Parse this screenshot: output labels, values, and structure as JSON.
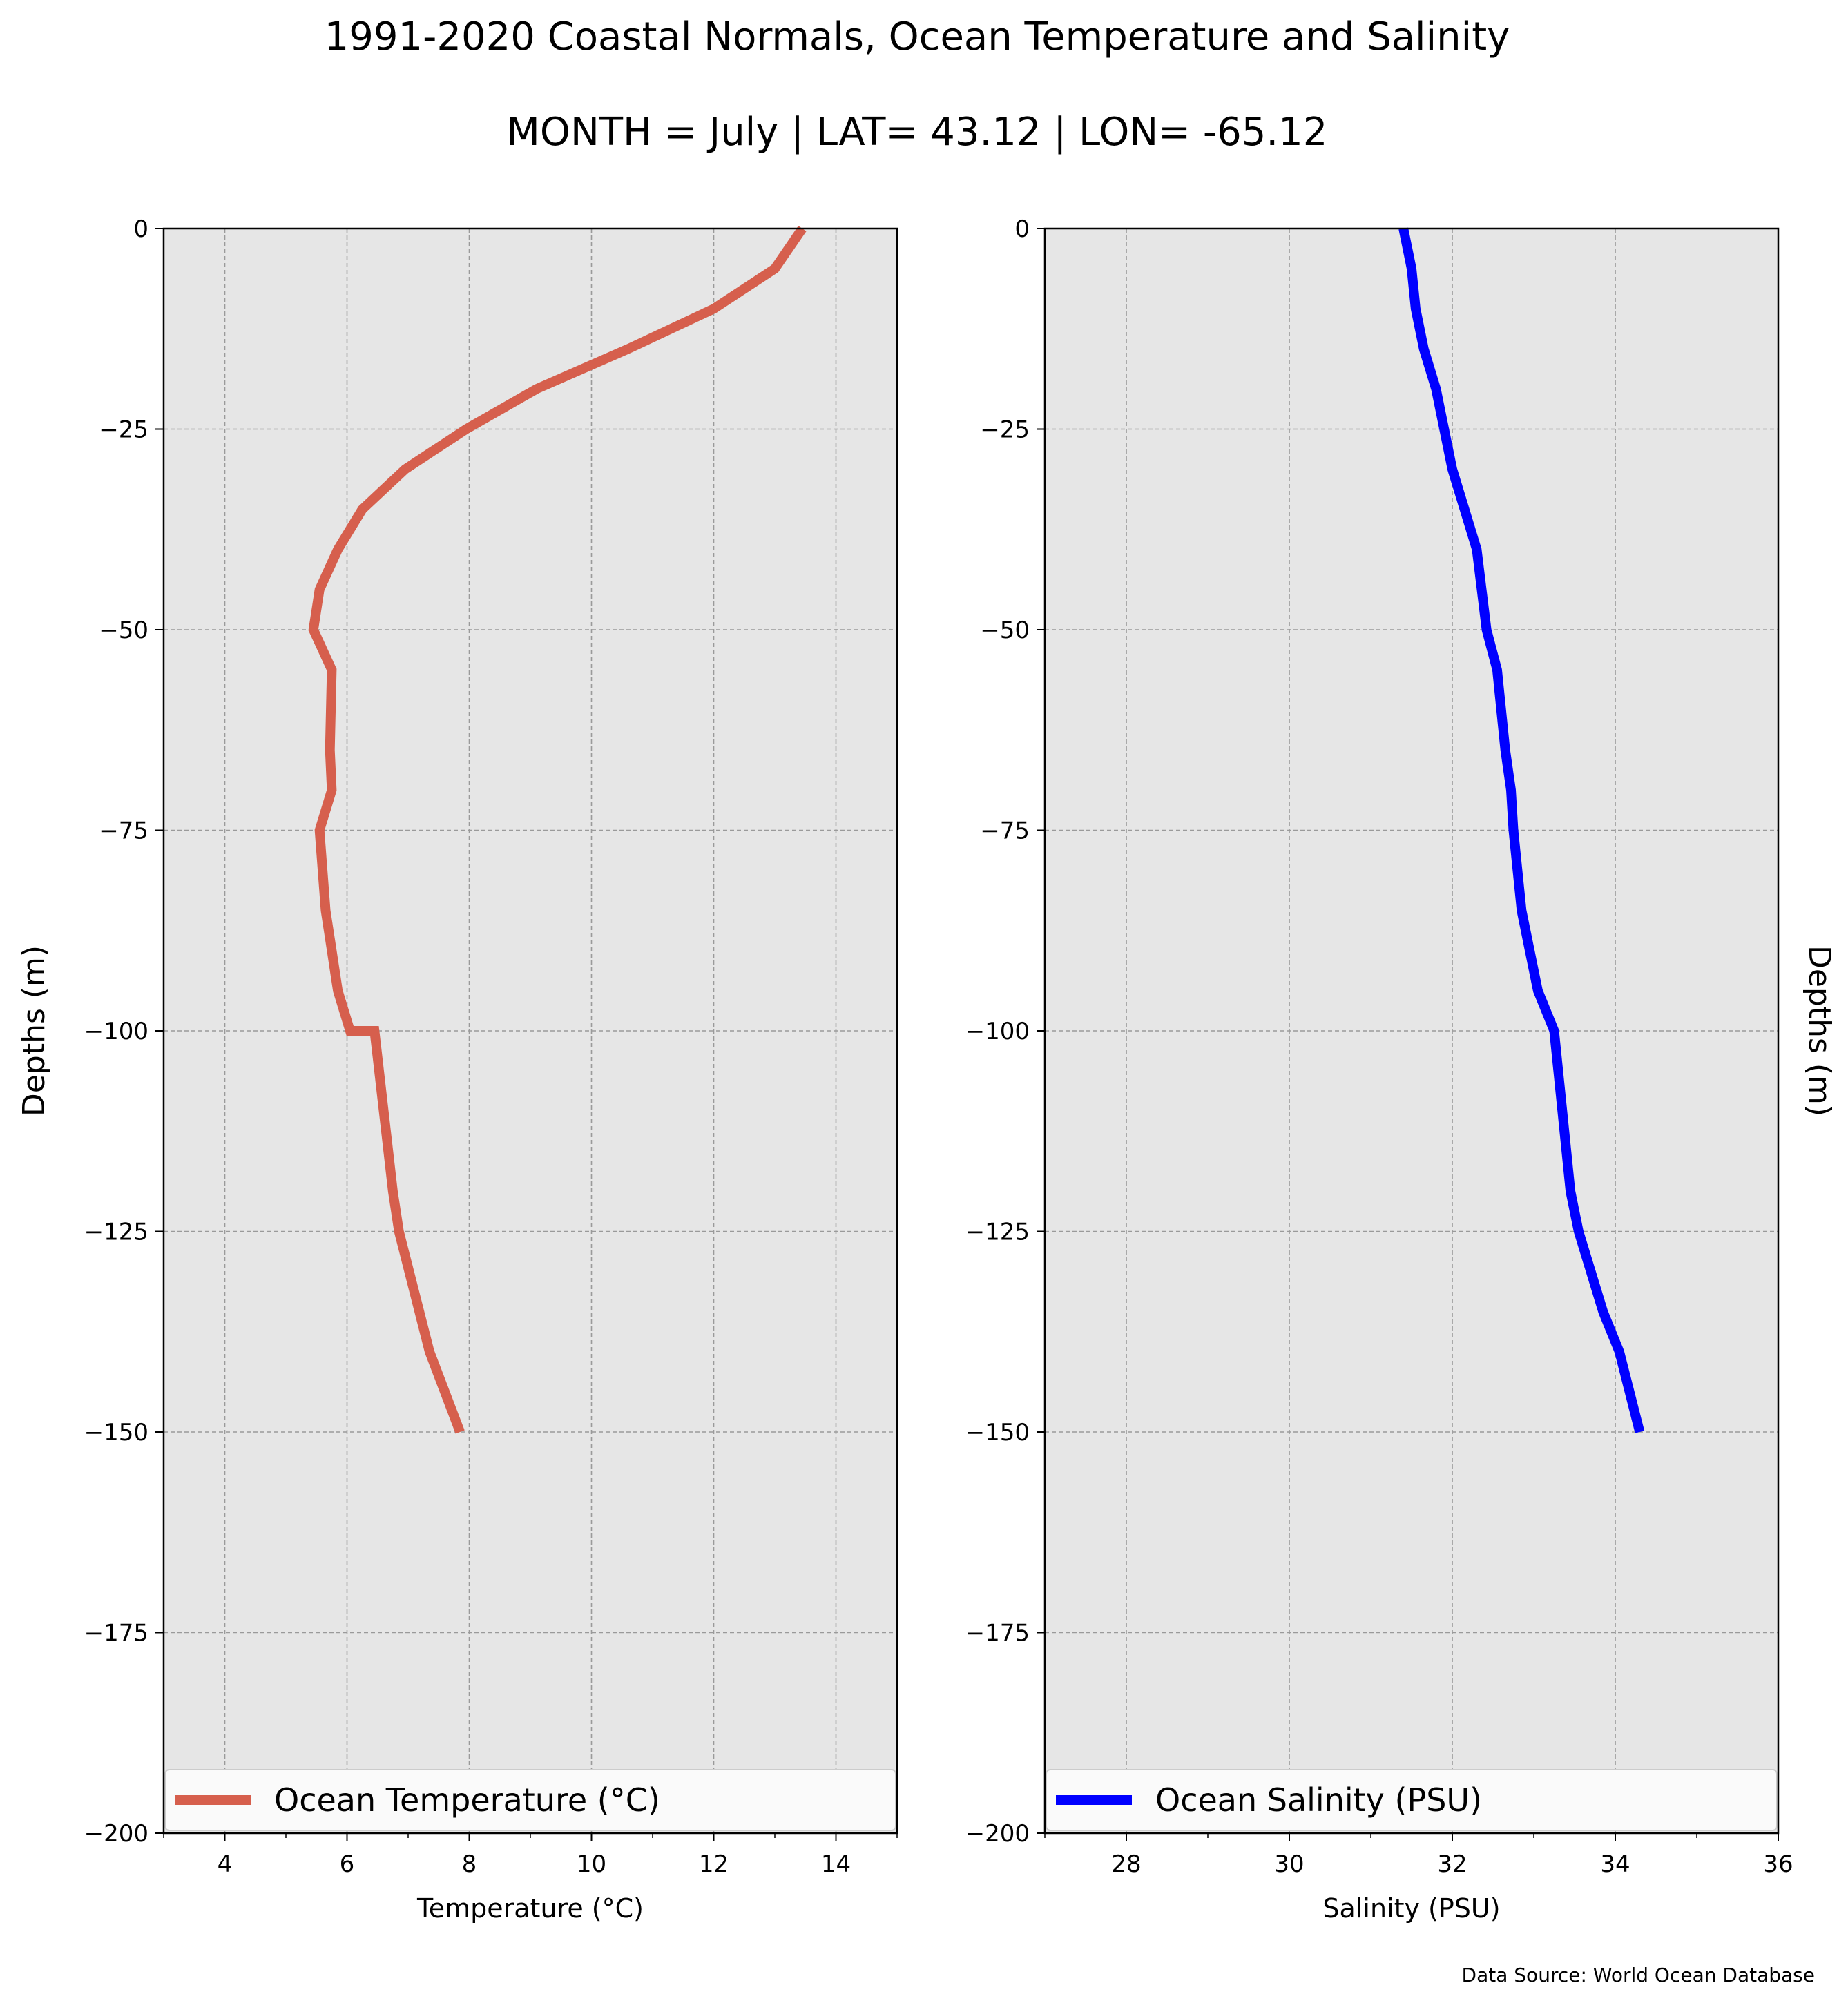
{
  "figure": {
    "title": "1991-2020 Coastal Normals, Ocean Temperature and Salinity",
    "subtitle": "MONTH = July | LAT= 43.12 | LON= -65.12",
    "footnote": "Data Source: World Ocean Database"
  },
  "chart_data": [
    {
      "type": "line",
      "title": "",
      "xlabel": "Temperature (°C)",
      "ylabel": "Depths (m)",
      "xlim": [
        3,
        15
      ],
      "ylim": [
        -200,
        0
      ],
      "xticks": [
        4,
        6,
        8,
        10,
        12,
        14
      ],
      "yticks": [
        0,
        -25,
        -50,
        -75,
        -100,
        -125,
        -150,
        -175,
        -200
      ],
      "grid": true,
      "legend_position": "bottom",
      "series": [
        {
          "name": "Ocean Temperature (°C)",
          "color": "#d65f4d",
          "x": [
            13.45,
            13.0,
            12.0,
            10.6,
            9.1,
            7.95,
            6.95,
            6.25,
            5.85,
            5.55,
            5.45,
            5.75,
            5.72,
            5.75,
            5.55,
            5.65,
            5.75,
            5.85,
            6.05,
            6.45,
            6.6,
            6.75,
            6.85,
            7.35,
            7.85
          ],
          "y": [
            0,
            -5,
            -10,
            -15,
            -20,
            -25,
            -30,
            -35,
            -40,
            -45,
            -50,
            -55,
            -65,
            -70,
            -75,
            -85,
            -90,
            -95,
            -100,
            -100,
            -110,
            -120,
            -125,
            -140,
            -150
          ]
        }
      ]
    },
    {
      "type": "line",
      "title": "",
      "xlabel": "Salinity (PSU)",
      "ylabel": "Depths (m)",
      "xlim": [
        27,
        36
      ],
      "ylim": [
        -200,
        0
      ],
      "xticks": [
        28,
        30,
        32,
        34,
        36
      ],
      "yticks": [
        0,
        -25,
        -50,
        -75,
        -100,
        -125,
        -150,
        -175,
        -200
      ],
      "grid": true,
      "legend_position": "bottom",
      "series": [
        {
          "name": "Ocean Salinity (PSU)",
          "color": "#0000ff",
          "x": [
            31.4,
            31.5,
            31.55,
            31.65,
            31.8,
            31.9,
            32.0,
            32.15,
            32.3,
            32.42,
            32.55,
            32.65,
            32.72,
            32.75,
            32.85,
            32.95,
            33.05,
            33.25,
            33.35,
            33.45,
            33.55,
            33.85,
            34.05,
            34.3
          ],
          "y": [
            0,
            -5,
            -10,
            -15,
            -20,
            -25,
            -30,
            -35,
            -40,
            -50,
            -55,
            -65,
            -70,
            -75,
            -85,
            -90,
            -95,
            -100,
            -110,
            -120,
            -125,
            -135,
            -140,
            -150
          ]
        }
      ]
    }
  ]
}
